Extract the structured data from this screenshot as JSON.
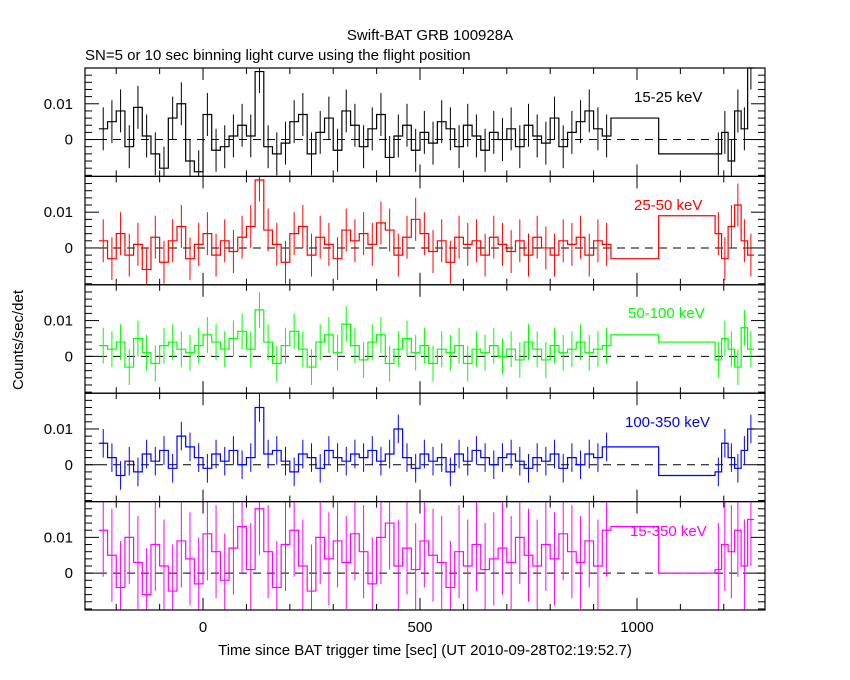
{
  "chart_data": {
    "type": "line",
    "title": "Swift-BAT GRB 100928A",
    "subtitle": "SN=5 or 10 sec binning light curve using the flight position",
    "xlabel": "Time since BAT trigger time [sec] (UT 2010-09-28T02:19:52.7)",
    "ylabel": "Counts/sec/det",
    "xlim": [
      -272,
      1295
    ],
    "ylim": [
      -0.0103,
      0.02
    ],
    "x_ticks": [
      0,
      500,
      1000
    ],
    "x_tick_labels": [
      "0",
      "500",
      "1000"
    ],
    "y_ticks": [
      0,
      0.01
    ],
    "y_tick_labels": [
      "0",
      "0.01"
    ],
    "bin_edges": [
      -240,
      -220,
      -200,
      -180,
      -160,
      -140,
      -120,
      -100,
      -80,
      -60,
      -40,
      -20,
      0,
      20,
      40,
      60,
      80,
      100,
      120,
      140,
      160,
      180,
      200,
      220,
      240,
      260,
      280,
      300,
      320,
      340,
      360,
      380,
      400,
      420,
      440,
      460,
      480,
      500,
      520,
      540,
      560,
      580,
      600,
      620,
      640,
      660,
      680,
      700,
      720,
      740,
      760,
      780,
      800,
      820,
      840,
      860,
      880,
      900,
      920,
      940,
      1050,
      1180,
      1195,
      1210,
      1225,
      1240,
      1255,
      1270
    ],
    "series": [
      {
        "name": "15-25 keV",
        "color": "#000000",
        "error": 0.006,
        "values": [
          0.003,
          0.005,
          0.008,
          -0.002,
          0.009,
          0.001,
          -0.004,
          -0.008,
          0.006,
          0.01,
          -0.006,
          -0.009,
          0.007,
          -0.003,
          -0.002,
          0.001,
          0.004,
          0.001,
          0.019,
          -0.002,
          -0.004,
          -0.001,
          0.005,
          0.007,
          -0.004,
          0.002,
          0.006,
          -0.003,
          0.008,
          0.004,
          -0.002,
          0.003,
          0.007,
          -0.005,
          0.001,
          0.004,
          -0.003,
          0.002,
          -0.001,
          0.005,
          0.003,
          -0.002,
          0.004,
          0.001,
          -0.003,
          0.002,
          0.0,
          0.003,
          -0.002,
          0.004,
          0.001,
          -0.001,
          0.006,
          -0.002,
          0.002,
          0.005,
          0.008,
          0.003,
          0.001,
          0.006,
          -0.004,
          -0.004,
          0.002,
          -0.006,
          0.008,
          0.003,
          0.02
        ]
      },
      {
        "name": "25-50 keV",
        "color": "#ff0000",
        "error": 0.006,
        "values": [
          0.002,
          -0.003,
          0.004,
          -0.002,
          0.001,
          -0.006,
          0.003,
          -0.004,
          0.002,
          0.006,
          -0.003,
          0.001,
          0.004,
          -0.002,
          0.002,
          -0.001,
          0.003,
          0.006,
          0.019,
          0.005,
          0.001,
          -0.004,
          0.004,
          0.006,
          -0.002,
          0.003,
          0.001,
          -0.003,
          0.005,
          0.002,
          0.004,
          0.001,
          0.007,
          0.005,
          -0.002,
          0.003,
          0.008,
          0.004,
          -0.001,
          0.002,
          -0.004,
          0.003,
          0.001,
          0.002,
          -0.002,
          0.003,
          0.001,
          -0.001,
          0.002,
          -0.002,
          0.003,
          0.0,
          -0.002,
          0.002,
          0.001,
          0.003,
          -0.002,
          0.002,
          0.001,
          -0.003,
          0.009,
          0.004,
          -0.003,
          0.006,
          0.012,
          0.002,
          -0.002
        ]
      },
      {
        "name": "50-100 keV",
        "color": "#00ff00",
        "error": 0.005,
        "values": [
          0.003,
          0.002,
          0.004,
          -0.003,
          0.005,
          0.001,
          -0.002,
          0.003,
          0.004,
          0.002,
          0.001,
          0.003,
          0.006,
          0.004,
          0.002,
          0.005,
          0.007,
          0.002,
          0.013,
          0.004,
          -0.002,
          0.003,
          0.007,
          0.002,
          -0.003,
          0.004,
          0.006,
          0.001,
          0.009,
          0.003,
          -0.001,
          0.004,
          0.006,
          -0.002,
          0.002,
          0.005,
          0.001,
          0.003,
          -0.002,
          0.002,
          0.001,
          0.003,
          -0.002,
          0.002,
          0.001,
          0.003,
          0.0,
          0.002,
          -0.001,
          0.004,
          0.002,
          -0.001,
          0.003,
          0.001,
          0.002,
          0.004,
          0.001,
          0.002,
          0.003,
          0.006,
          0.004,
          -0.001,
          0.005,
          0.002,
          -0.003,
          0.008,
          0.002
        ]
      },
      {
        "name": "100-350 keV",
        "color": "#0000ff",
        "error": 0.004,
        "values": [
          0.006,
          0.002,
          -0.003,
          0.001,
          -0.002,
          0.003,
          0.001,
          0.004,
          -0.001,
          0.008,
          0.005,
          0.002,
          -0.001,
          0.003,
          0.001,
          0.004,
          0.0,
          0.002,
          0.016,
          0.003,
          0.004,
          0.001,
          -0.002,
          0.003,
          0.002,
          -0.001,
          0.004,
          0.002,
          0.001,
          0.003,
          0.002,
          0.004,
          0.001,
          0.003,
          0.01,
          0.002,
          -0.001,
          0.003,
          0.001,
          0.002,
          -0.002,
          0.003,
          0.001,
          0.004,
          0.002,
          0.0,
          0.002,
          0.003,
          0.001,
          -0.001,
          0.002,
          0.001,
          0.003,
          -0.001,
          0.002,
          0.0,
          0.003,
          0.002,
          0.005,
          0.005,
          -0.003,
          -0.002,
          0.006,
          0.002,
          -0.001,
          0.004,
          0.01
        ]
      },
      {
        "name": "15-350 keV",
        "color": "#ff00ff",
        "error": 0.013,
        "values": [
          0.012,
          0.005,
          -0.004,
          0.01,
          0.003,
          -0.006,
          0.008,
          0.002,
          -0.005,
          0.009,
          0.004,
          -0.003,
          0.011,
          0.006,
          -0.002,
          0.007,
          0.013,
          0.001,
          0.018,
          0.006,
          -0.004,
          0.008,
          0.012,
          0.002,
          -0.005,
          0.01,
          0.004,
          0.009,
          0.003,
          0.011,
          0.006,
          -0.003,
          0.01,
          0.014,
          0.002,
          0.007,
          0.001,
          0.009,
          0.005,
          0.003,
          -0.004,
          0.006,
          0.002,
          0.008,
          0.001,
          0.004,
          0.007,
          0.003,
          0.01,
          0.005,
          0.002,
          0.008,
          0.004,
          0.011,
          0.006,
          0.003,
          0.009,
          0.002,
          0.012,
          0.013,
          0.0,
          0.001,
          0.008,
          0.006,
          0.012,
          0.002,
          0.015
        ]
      }
    ]
  }
}
